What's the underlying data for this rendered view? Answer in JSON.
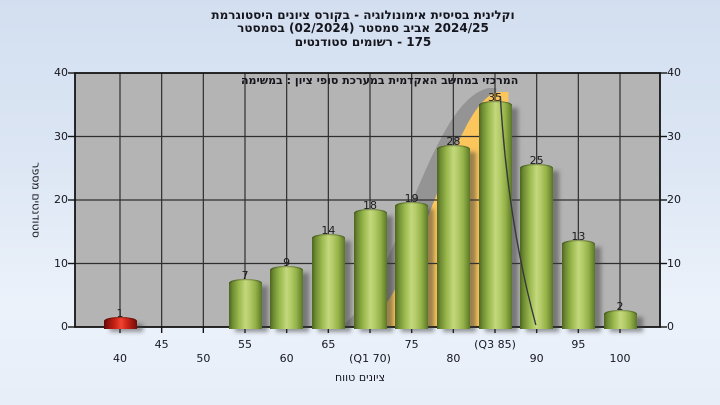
{
  "chart_data": {
    "type": "bar",
    "title_lines": [
      "היסטוגרמת ציונים בקורס - אימונולוגיה בסיסית וקלינית",
      "בסמסטר (02/2024) סמסטר אביב 2024/25",
      "סטודנטים רשומים - 175"
    ],
    "registered_students": 175,
    "annotation": "במשימה : ציון סופי במערכת האקדמית במחשב המרכזי",
    "xlabel": "טווח ציונים",
    "ylabel": "מספר סטודנטים",
    "categories": [
      40,
      55,
      60,
      65,
      70,
      75,
      80,
      85,
      90,
      95,
      100
    ],
    "values": [
      1,
      7,
      9,
      14,
      18,
      19,
      28,
      35,
      25,
      13,
      2
    ],
    "first_bar_is_red": true,
    "x_ticks": [
      40,
      45,
      50,
      55,
      60,
      65,
      70,
      75,
      80,
      85,
      90,
      95,
      100
    ],
    "x_tick_labels": [
      "40",
      "45",
      "50",
      "55",
      "60",
      "65",
      "(Q1 70)",
      "75",
      "80",
      "(Q3 85)",
      "90",
      "95",
      "100"
    ],
    "y_ticks": [
      0,
      10,
      20,
      30,
      40
    ],
    "ylim": [
      0,
      40
    ],
    "xlim": [
      34.6,
      104.8
    ],
    "grid": true,
    "plot_background": "#b4b4b4",
    "grid_color": "#2e2e2e",
    "bar_color_green": "#a9c255",
    "bar_color_red": "#d8251a",
    "overlay_curve": {
      "type": "bell-area",
      "color": "#fcc65d",
      "start_x": 69.3,
      "peak_x": 85.4,
      "peak_count": 37,
      "tail_end_x": 89.9
    }
  }
}
